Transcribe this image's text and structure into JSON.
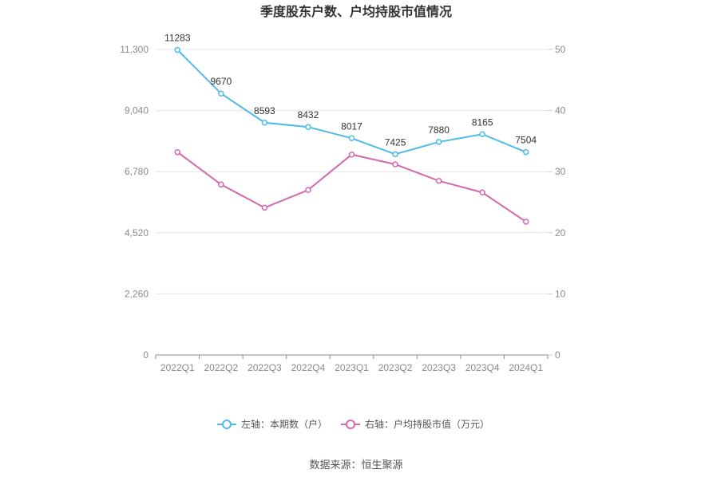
{
  "chart_data": {
    "type": "line",
    "title": "季度股东户数、户均持股市值情况",
    "categories": [
      "2022Q1",
      "2022Q2",
      "2022Q3",
      "2022Q4",
      "2023Q1",
      "2023Q2",
      "2023Q3",
      "2023Q4",
      "2024Q1"
    ],
    "series": [
      {
        "name": "左轴：本期数（户）",
        "axis": "left",
        "color": "#4dbbea",
        "values": [
          11283,
          9670,
          8593,
          8432,
          8017,
          7425,
          7880,
          8165,
          7504
        ],
        "labels": [
          "11283",
          "9670",
          "8593",
          "8432",
          "8017",
          "7425",
          "7880",
          "8165",
          "7504"
        ]
      },
      {
        "name": "右轴：户均持股市值（万元）",
        "axis": "right",
        "color": "#d468ae",
        "values": [
          33.2,
          27.9,
          24.1,
          27.0,
          32.8,
          31.2,
          28.5,
          26.6,
          21.8
        ]
      }
    ],
    "y_left": {
      "ylim": [
        0,
        11300
      ],
      "ticks": [
        0,
        2260,
        4520,
        6780,
        9040,
        11300
      ],
      "tick_labels": [
        "0",
        "2,260",
        "4,520",
        "6,780",
        "9,040",
        "11,300"
      ]
    },
    "y_right": {
      "ylim": [
        0,
        50
      ],
      "ticks": [
        0,
        10,
        20,
        30,
        40,
        50
      ],
      "tick_labels": [
        "0",
        "10",
        "20",
        "30",
        "40",
        "50"
      ]
    },
    "grid": true,
    "legend": "bottom"
  },
  "source": "数据来源：恒生聚源"
}
